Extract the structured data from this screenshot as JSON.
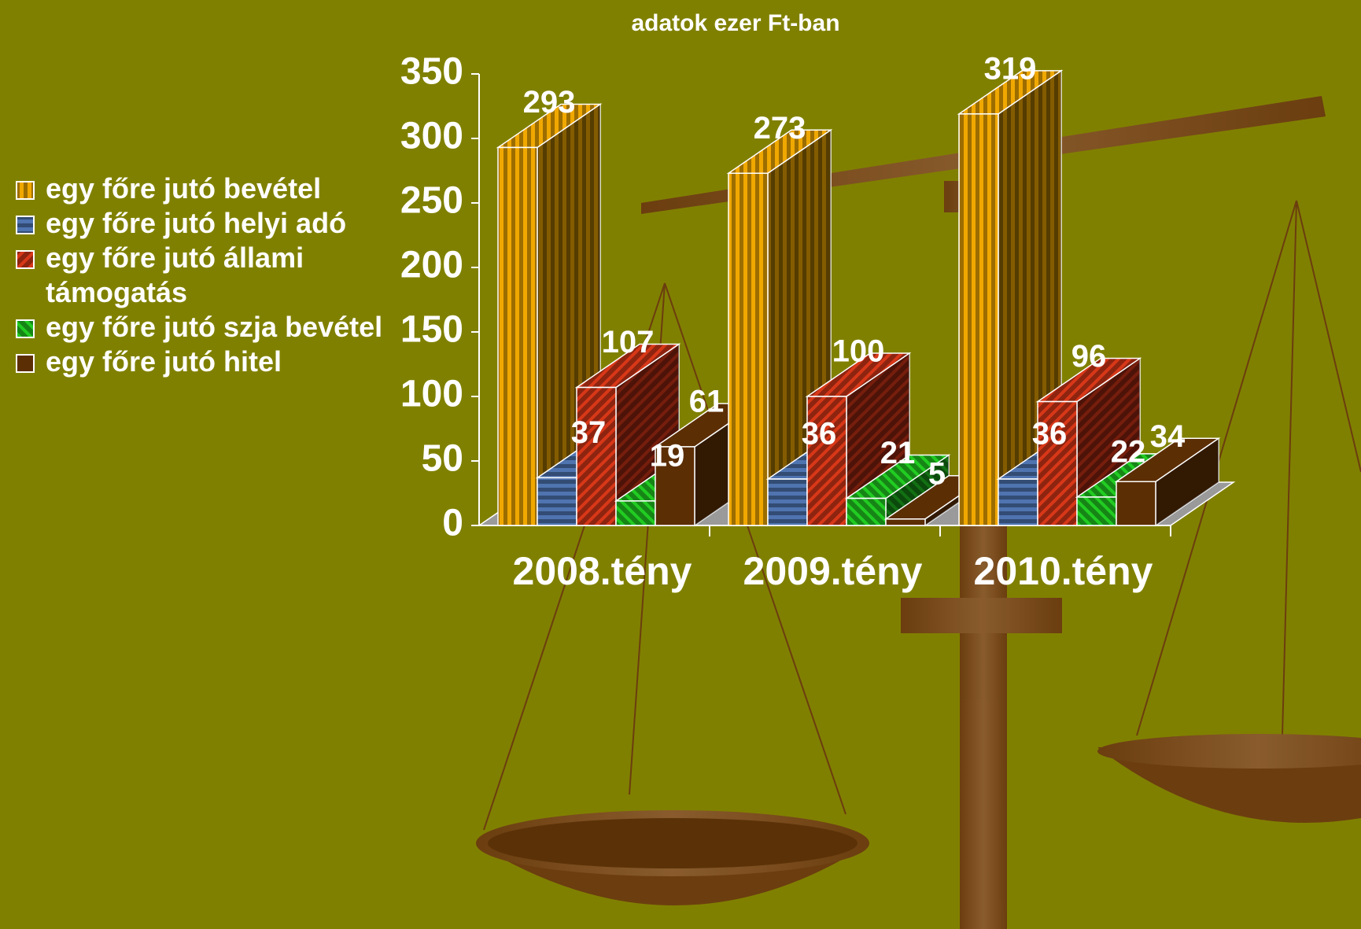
{
  "chart_data": {
    "type": "bar3d",
    "title": "adatok ezer Ft-ban",
    "categories": [
      "2008.tény",
      "2009.tény",
      "2010.tény"
    ],
    "series": [
      {
        "name": "egy főre jutó bevétel",
        "color": "#f0a800",
        "values": [
          293,
          273,
          319
        ]
      },
      {
        "name": "egy főre jutó helyi adó",
        "color": "#4f74b0",
        "values": [
          37,
          36,
          36
        ]
      },
      {
        "name": "egy főre jutó állami támogatás",
        "color": "#d83818",
        "values": [
          107,
          100,
          96
        ]
      },
      {
        "name": "egy főre jutó szja bevétel",
        "color": "#22cc22",
        "values": [
          19,
          21,
          22
        ]
      },
      {
        "name": "egy főre jutó hitel",
        "color": "#5c2e04",
        "values": [
          61,
          5,
          34
        ]
      }
    ],
    "ylim": [
      0,
      350
    ],
    "yticks": [
      0,
      50,
      100,
      150,
      200,
      250,
      300,
      350
    ],
    "legend": "left"
  }
}
